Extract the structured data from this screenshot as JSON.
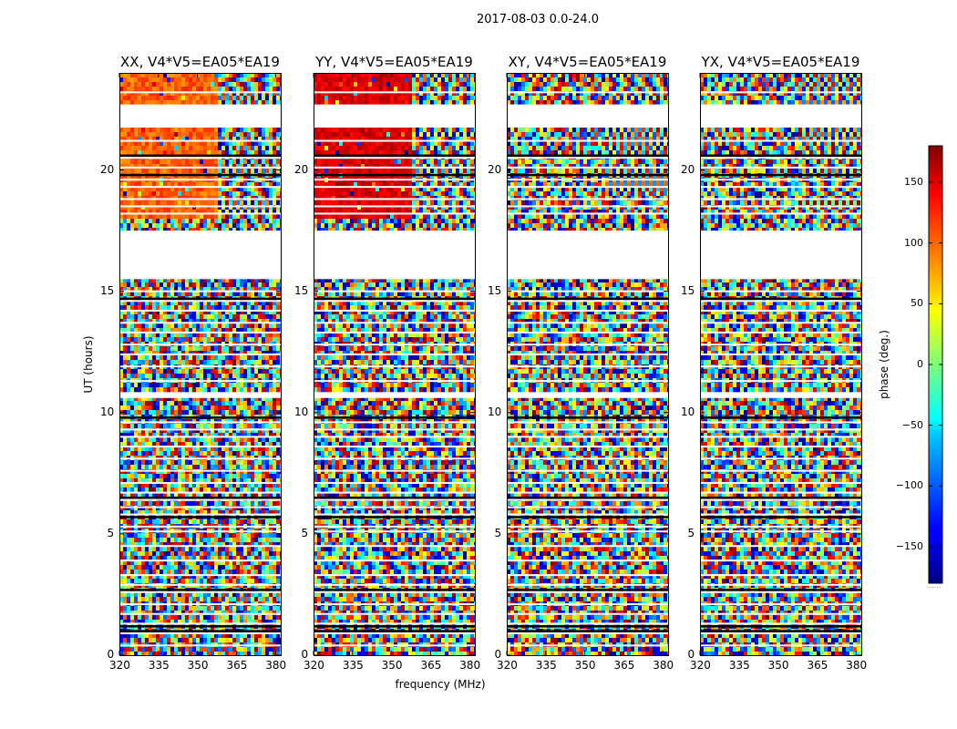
{
  "figure": {
    "suptitle": "2017-08-03 0.0-24.0",
    "xlabel": "frequency (MHz)",
    "ylabel": "UT (hours)",
    "colorbar_label": "phase (deg.)",
    "colorbar_extra": "......"
  },
  "chart_data": [
    {
      "type": "heatmap",
      "title": "XX, V4*V5=EA05*EA19",
      "polarization": "XX",
      "xlabel": "frequency (MHz)",
      "ylabel": "UT (hours)",
      "xlim": [
        320,
        382
      ],
      "ylim": [
        0,
        24
      ],
      "xticks": [
        "320",
        "335",
        "350",
        "365",
        "380"
      ],
      "yticks": [
        "0",
        "5",
        "10",
        "15",
        "20"
      ],
      "colormap": "jet",
      "clim": [
        -180,
        180
      ]
    },
    {
      "type": "heatmap",
      "title": "YY, V4*V5=EA05*EA19",
      "polarization": "YY",
      "xlabel": "",
      "ylabel": "",
      "xlim": [
        320,
        382
      ],
      "ylim": [
        0,
        24
      ],
      "xticks": [
        "320",
        "335",
        "350",
        "365",
        "380"
      ],
      "yticks": [
        "0",
        "5",
        "10",
        "15",
        "20"
      ],
      "colormap": "jet",
      "clim": [
        -180,
        180
      ]
    },
    {
      "type": "heatmap",
      "title": "XY, V4*V5=EA05*EA19",
      "polarization": "XY",
      "xlabel": "",
      "ylabel": "",
      "xlim": [
        320,
        382
      ],
      "ylim": [
        0,
        24
      ],
      "xticks": [
        "320",
        "335",
        "350",
        "365",
        "380"
      ],
      "yticks": [
        "0",
        "5",
        "10",
        "15",
        "20"
      ],
      "colormap": "jet",
      "clim": [
        -180,
        180
      ]
    },
    {
      "type": "heatmap",
      "title": "YX, V4*V5=EA05*EA19",
      "polarization": "YX",
      "xlabel": "",
      "ylabel": "",
      "xlim": [
        320,
        382
      ],
      "ylim": [
        0,
        24
      ],
      "xticks": [
        "320",
        "335",
        "350",
        "365",
        "380"
      ],
      "yticks": [
        "0",
        "5",
        "10",
        "15",
        "20"
      ],
      "colormap": "jet",
      "clim": [
        -180,
        180
      ]
    }
  ],
  "colorbar": {
    "range": [
      -180,
      180
    ],
    "ticks": [
      150,
      100,
      50,
      0,
      -50,
      -100,
      -150
    ],
    "tick_labels": [
      "150",
      "100",
      "50",
      "0",
      "−50",
      "−100",
      "−150"
    ]
  },
  "data_gaps_hours": [
    [
      10.6,
      10.8
    ],
    [
      15.5,
      17.5
    ],
    [
      21.8,
      22.7
    ]
  ]
}
